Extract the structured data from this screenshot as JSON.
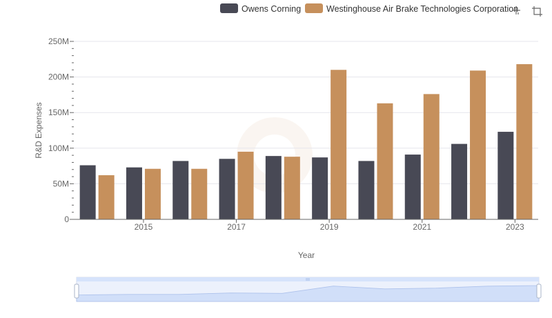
{
  "colors": {
    "owens": "#484955",
    "wabtec": "#c6905c",
    "grid": "#e6e6ec",
    "axis": "#666666",
    "slider_fill": "#d6e3fb",
    "slider_border": "#9fb7e6"
  },
  "toolbar": {
    "tool_icons": [
      "crosshair-plus-icon",
      "crop-box-icon"
    ]
  },
  "chart_data": {
    "type": "bar",
    "xlabel": "Year",
    "ylabel": "R&D Expenses",
    "ylim": [
      0,
      250000000
    ],
    "y_ticks": [
      {
        "value": 0,
        "label": "0"
      },
      {
        "value": 50000000,
        "label": "50M"
      },
      {
        "value": 100000000,
        "label": "100M"
      },
      {
        "value": 150000000,
        "label": "150M"
      },
      {
        "value": 200000000,
        "label": "200M"
      },
      {
        "value": 250000000,
        "label": "250M"
      }
    ],
    "categories": [
      2014,
      2015,
      2016,
      2017,
      2018,
      2019,
      2020,
      2021,
      2022,
      2023
    ],
    "x_tick_labels": [
      {
        "category": 2015,
        "label": "2015"
      },
      {
        "category": 2017,
        "label": "2017"
      },
      {
        "category": 2019,
        "label": "2019"
      },
      {
        "category": 2021,
        "label": "2021"
      },
      {
        "category": 2023,
        "label": "2023"
      }
    ],
    "legend_position": "top-right",
    "grid": true,
    "series": [
      {
        "name": "Owens Corning",
        "color_key": "owens",
        "values": [
          76000000,
          73000000,
          82000000,
          85000000,
          89000000,
          87000000,
          82000000,
          91000000,
          106000000,
          123000000
        ]
      },
      {
        "name": "Westinghouse Air Brake Technologies Corporation",
        "color_key": "wabtec",
        "values": [
          62000000,
          71000000,
          71000000,
          95000000,
          88000000,
          210000000,
          163000000,
          176000000,
          209000000,
          218000000
        ]
      }
    ]
  }
}
